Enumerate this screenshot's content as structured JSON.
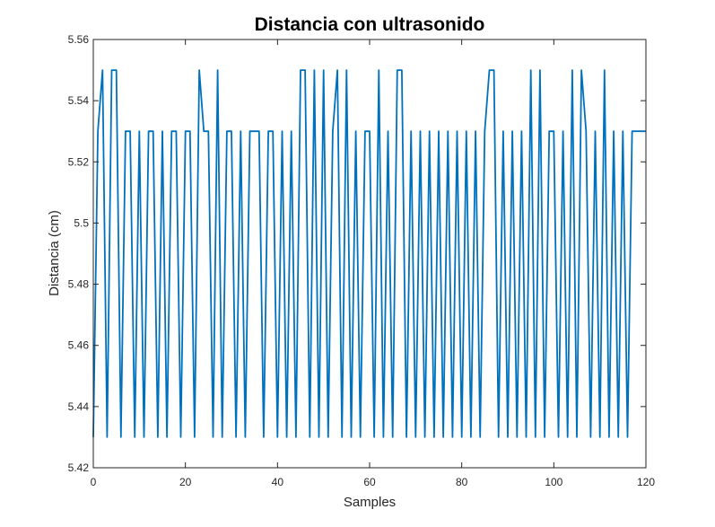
{
  "chart_data": {
    "type": "line",
    "title": "Distancia con ultrasonido",
    "xlabel": "Samples",
    "ylabel": "Distancia (cm)",
    "xlim": [
      0,
      120
    ],
    "ylim": [
      5.42,
      5.56
    ],
    "xticks": [
      "0",
      "20",
      "40",
      "60",
      "80",
      "100",
      "120"
    ],
    "yticks": [
      "5.42",
      "5.44",
      "5.46",
      "5.48",
      "5.5",
      "5.52",
      "5.54",
      "5.56"
    ],
    "grid": false,
    "legend": "none",
    "series": [
      {
        "color": "#0072BD",
        "x": [
          0,
          1,
          2,
          3,
          4,
          5,
          6,
          7,
          8,
          9,
          10,
          11,
          12,
          13,
          14,
          15,
          16,
          17,
          18,
          19,
          20,
          21,
          22,
          23,
          24,
          25,
          26,
          27,
          28,
          29,
          30,
          31,
          32,
          33,
          34,
          35,
          36,
          37,
          38,
          39,
          40,
          41,
          42,
          43,
          44,
          45,
          46,
          47,
          48,
          49,
          50,
          51,
          52,
          53,
          54,
          55,
          56,
          57,
          58,
          59,
          60,
          61,
          62,
          63,
          64,
          65,
          66,
          67,
          68,
          69,
          70,
          71,
          72,
          73,
          74,
          75,
          76,
          77,
          78,
          79,
          80,
          81,
          82,
          83,
          84,
          85,
          86,
          87,
          88,
          89,
          90,
          91,
          92,
          93,
          94,
          95,
          96,
          97,
          98,
          99,
          100,
          101,
          102,
          103,
          104,
          105,
          106,
          107,
          108,
          109,
          110,
          111,
          112,
          113,
          114,
          115,
          116,
          117,
          118,
          119,
          120
        ],
        "values": [
          5.43,
          5.53,
          5.55,
          5.43,
          5.55,
          5.55,
          5.43,
          5.53,
          5.53,
          5.43,
          5.53,
          5.43,
          5.53,
          5.53,
          5.43,
          5.53,
          5.43,
          5.53,
          5.53,
          5.43,
          5.53,
          5.53,
          5.43,
          5.55,
          5.53,
          5.53,
          5.43,
          5.55,
          5.43,
          5.53,
          5.53,
          5.43,
          5.53,
          5.43,
          5.53,
          5.53,
          5.53,
          5.43,
          5.53,
          5.53,
          5.43,
          5.53,
          5.43,
          5.53,
          5.43,
          5.55,
          5.55,
          5.43,
          5.55,
          5.43,
          5.55,
          5.43,
          5.53,
          5.55,
          5.43,
          5.55,
          5.43,
          5.53,
          5.43,
          5.53,
          5.53,
          5.43,
          5.55,
          5.43,
          5.53,
          5.43,
          5.55,
          5.55,
          5.43,
          5.53,
          5.43,
          5.53,
          5.43,
          5.53,
          5.43,
          5.53,
          5.43,
          5.53,
          5.43,
          5.53,
          5.43,
          5.53,
          5.43,
          5.53,
          5.43,
          5.53,
          5.55,
          5.55,
          5.43,
          5.53,
          5.43,
          5.53,
          5.43,
          5.53,
          5.43,
          5.55,
          5.43,
          5.55,
          5.43,
          5.53,
          5.53,
          5.43,
          5.53,
          5.43,
          5.55,
          5.43,
          5.55,
          5.53,
          5.43,
          5.53,
          5.43,
          5.55,
          5.43,
          5.53,
          5.43,
          5.53,
          5.43,
          5.53,
          5.53,
          5.53,
          5.53
        ]
      }
    ]
  }
}
